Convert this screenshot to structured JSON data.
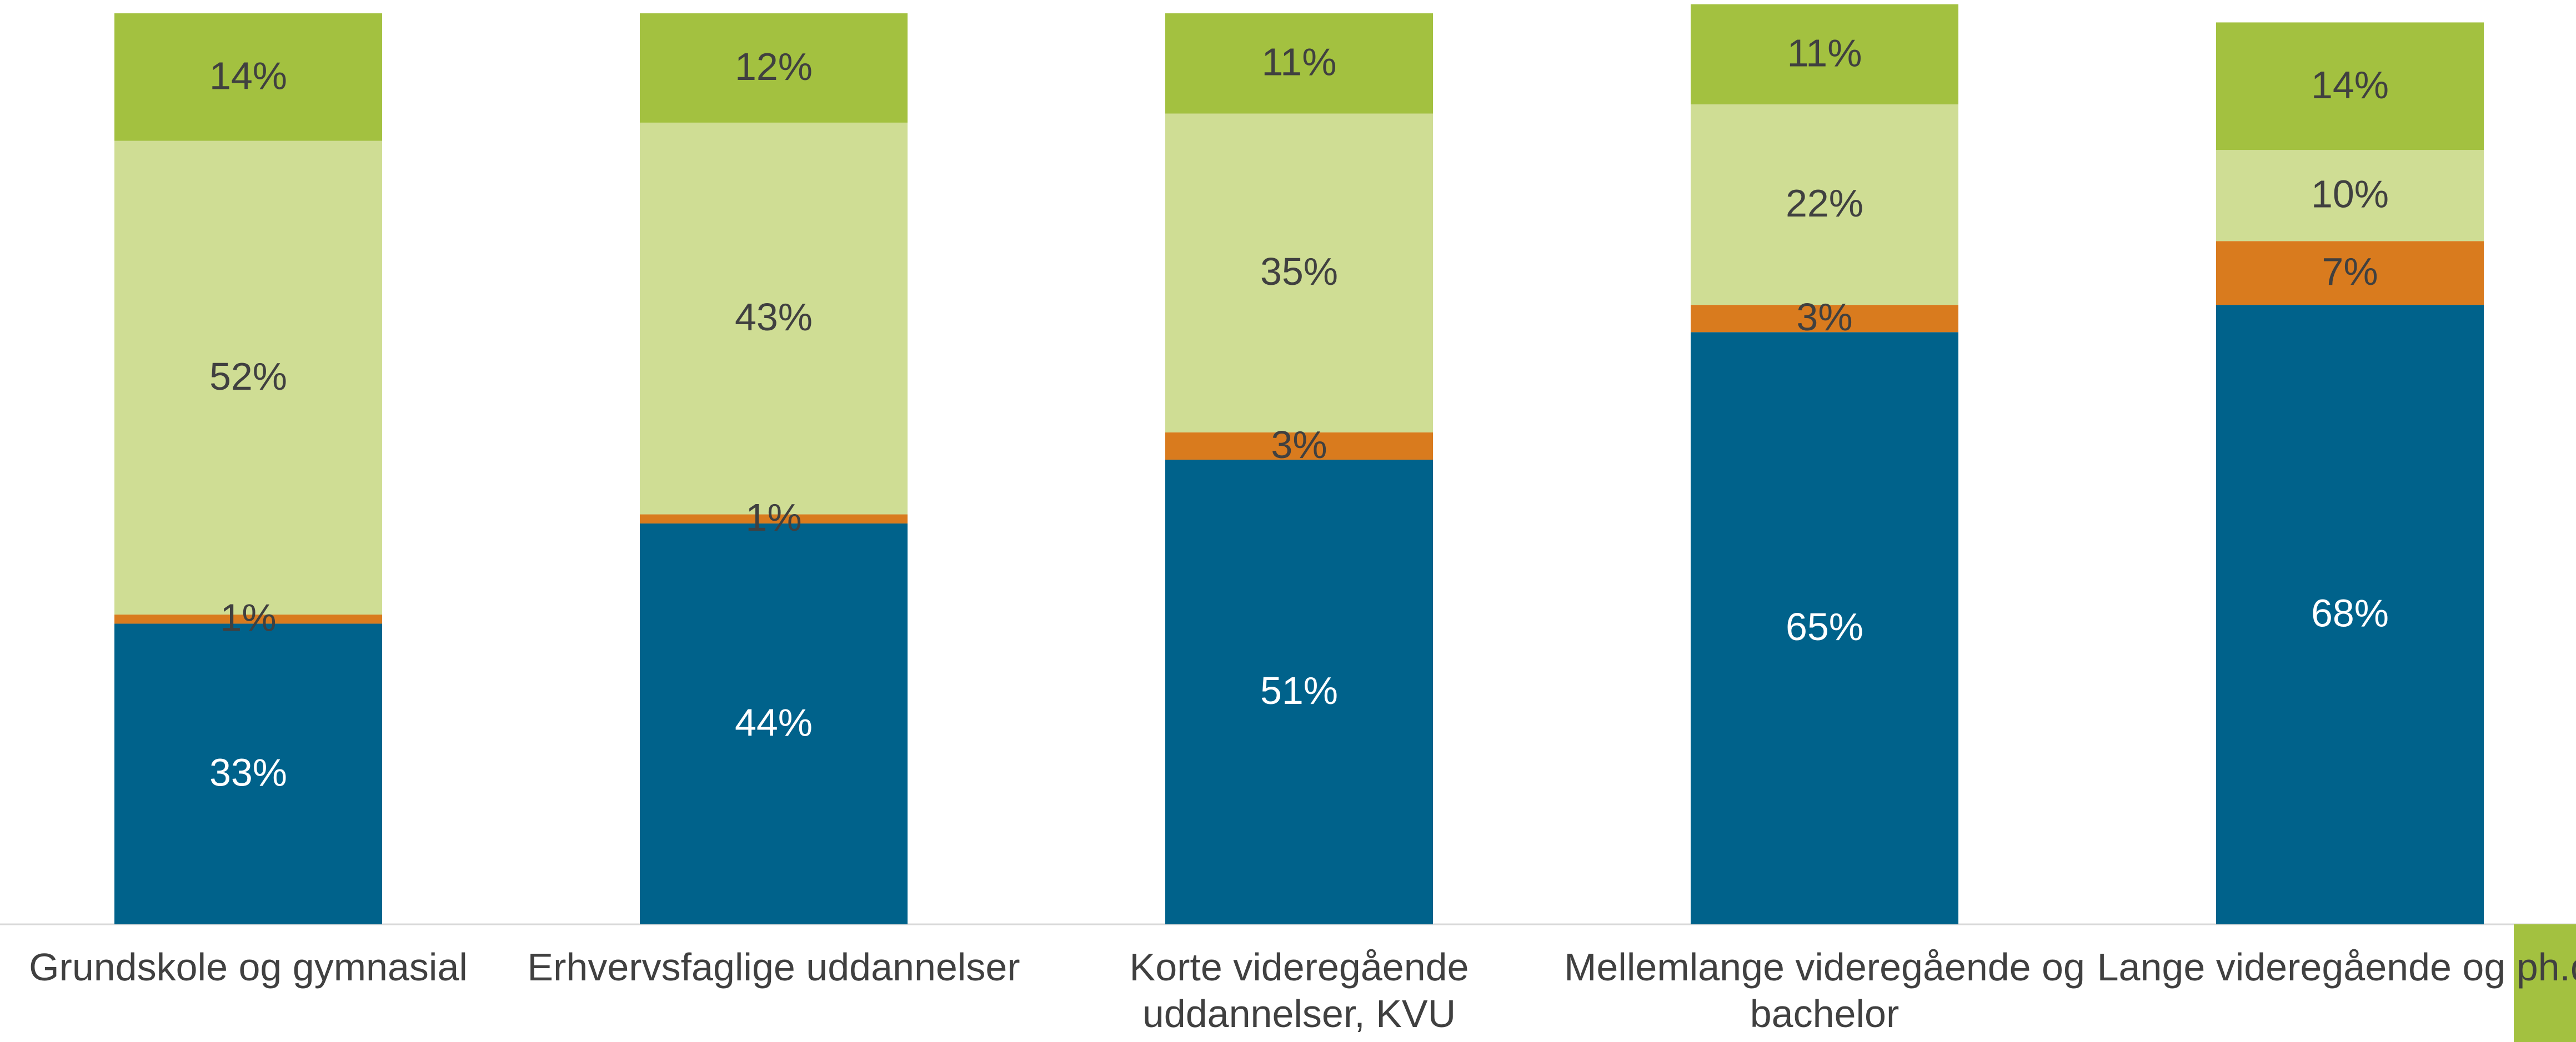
{
  "chart_data": {
    "type": "stacked_bar",
    "categories": [
      "Grundskole og gymnasial",
      "Erhvervsfaglige uddannelser",
      "Korte videregående uddannelser, KVU",
      "Mellemlange videregående og bachelor",
      "Lange videregående og ph.d."
    ],
    "ylim": [
      0,
      100
    ],
    "series": [
      {
        "color": "#00628b",
        "values": [
          33,
          44,
          51,
          65,
          68
        ],
        "value_labels": [
          "33%",
          "44%",
          "51%",
          "65%",
          "68%"
        ]
      },
      {
        "color": "#d97b1e",
        "values": [
          1,
          1,
          3,
          3,
          7
        ],
        "value_labels": [
          "1%",
          "1%",
          "3%",
          "3%",
          "7%"
        ]
      },
      {
        "color": "#cfdd94",
        "values": [
          52,
          43,
          35,
          22,
          10
        ],
        "value_labels": [
          "52%",
          "43%",
          "35%",
          "22%",
          "10%"
        ]
      },
      {
        "color": "#a3c140",
        "values": [
          14,
          12,
          11,
          11,
          14
        ],
        "value_labels": [
          "14%",
          "12%",
          "11%",
          "11%",
          "14%"
        ]
      }
    ]
  }
}
